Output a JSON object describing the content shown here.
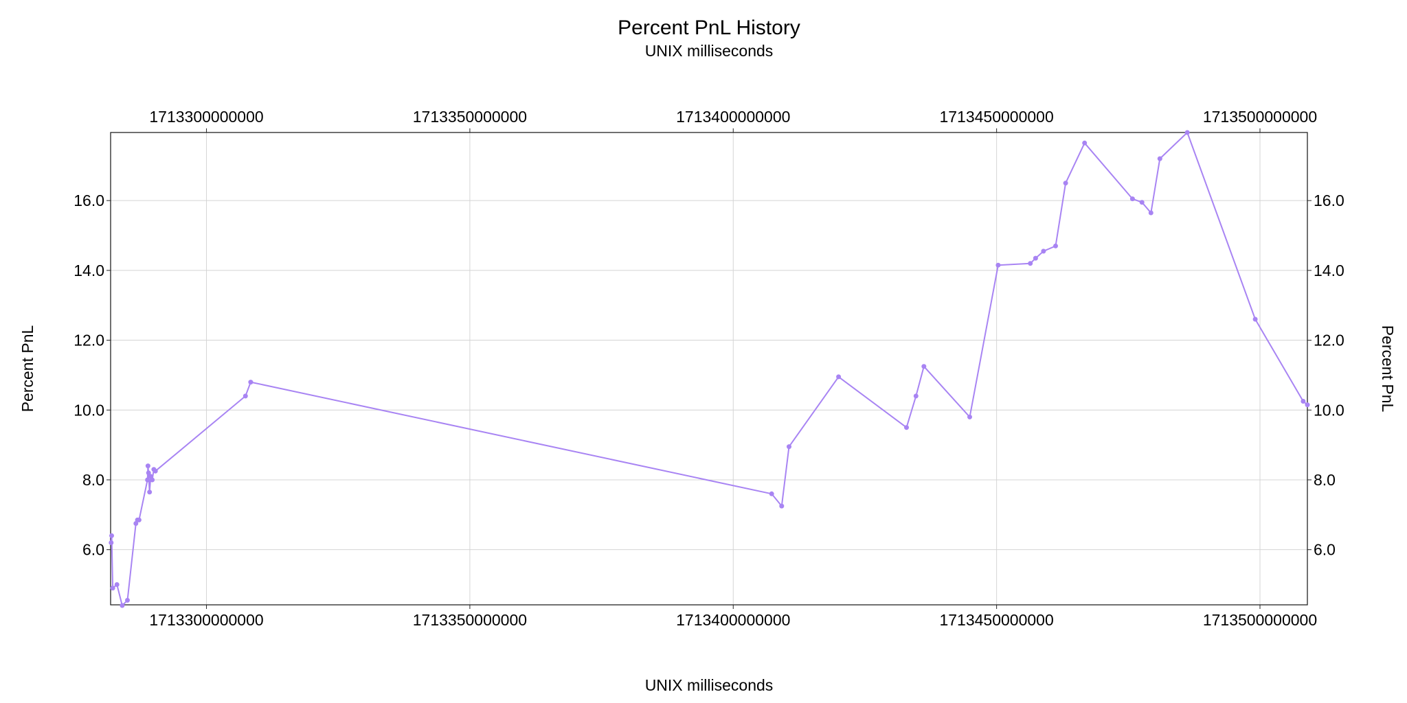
{
  "chart_data": {
    "type": "line",
    "title": "Percent PnL History",
    "subtitle": "UNIX milliseconds",
    "xlabel": "UNIX milliseconds",
    "ylabel": "Percent PnL",
    "y2label": "Percent PnL",
    "x_axis_position": "top and bottom",
    "y_axis_position": "left and right",
    "xlim": [
      1713281800000,
      1713509000000
    ],
    "ylim": [
      4.42,
      17.95
    ],
    "x_ticks": [
      1713300000000,
      1713350000000,
      1713400000000,
      1713450000000,
      1713500000000
    ],
    "x_tick_labels": [
      "1713300000000",
      "1713350000000",
      "1713400000000",
      "1713450000000",
      "1713500000000"
    ],
    "y_ticks": [
      6,
      8,
      10,
      12,
      14,
      16
    ],
    "y_tick_labels": [
      "6.0",
      "8.0",
      "10.0",
      "12.0",
      "14.0",
      "16.0"
    ],
    "grid": true,
    "legend": "none",
    "line_color": "#a884f3",
    "marker_color": "#a884f3",
    "series": [
      {
        "x": [
          1713281900000,
          1713282000000,
          1713282200000,
          1713283000000,
          1713284000000,
          1713285000000,
          1713286600000,
          1713286900000,
          1713287200000,
          1713288800000,
          1713288900000,
          1713289000000,
          1713289200000,
          1713289400000,
          1713289700000,
          1713290000000,
          1713290300000,
          1713307400000,
          1713308400000,
          1713407300000,
          1713409200000,
          1713410600000,
          1713420000000,
          1713432900000,
          1713434700000,
          1713436200000,
          1713444900000,
          1713450300000,
          1713456400000,
          1713457400000,
          1713458900000,
          1713461200000,
          1713463100000,
          1713466700000,
          1713475800000,
          1713477600000,
          1713479300000,
          1713481000000,
          1713486200000,
          1713499100000,
          1713508200000,
          1713509000000
        ],
        "y": [
          6.2,
          6.4,
          4.9,
          5.0,
          4.4,
          4.55,
          6.75,
          6.85,
          6.85,
          8.0,
          8.4,
          8.2,
          7.65,
          8.1,
          8.0,
          8.3,
          8.25,
          10.4,
          10.8,
          7.6,
          7.25,
          8.95,
          10.95,
          9.5,
          10.4,
          11.25,
          9.8,
          14.15,
          14.2,
          14.35,
          14.55,
          14.7,
          16.5,
          17.65,
          16.05,
          15.95,
          15.65,
          17.2,
          17.95,
          12.6,
          10.25,
          10.15
        ]
      }
    ]
  }
}
